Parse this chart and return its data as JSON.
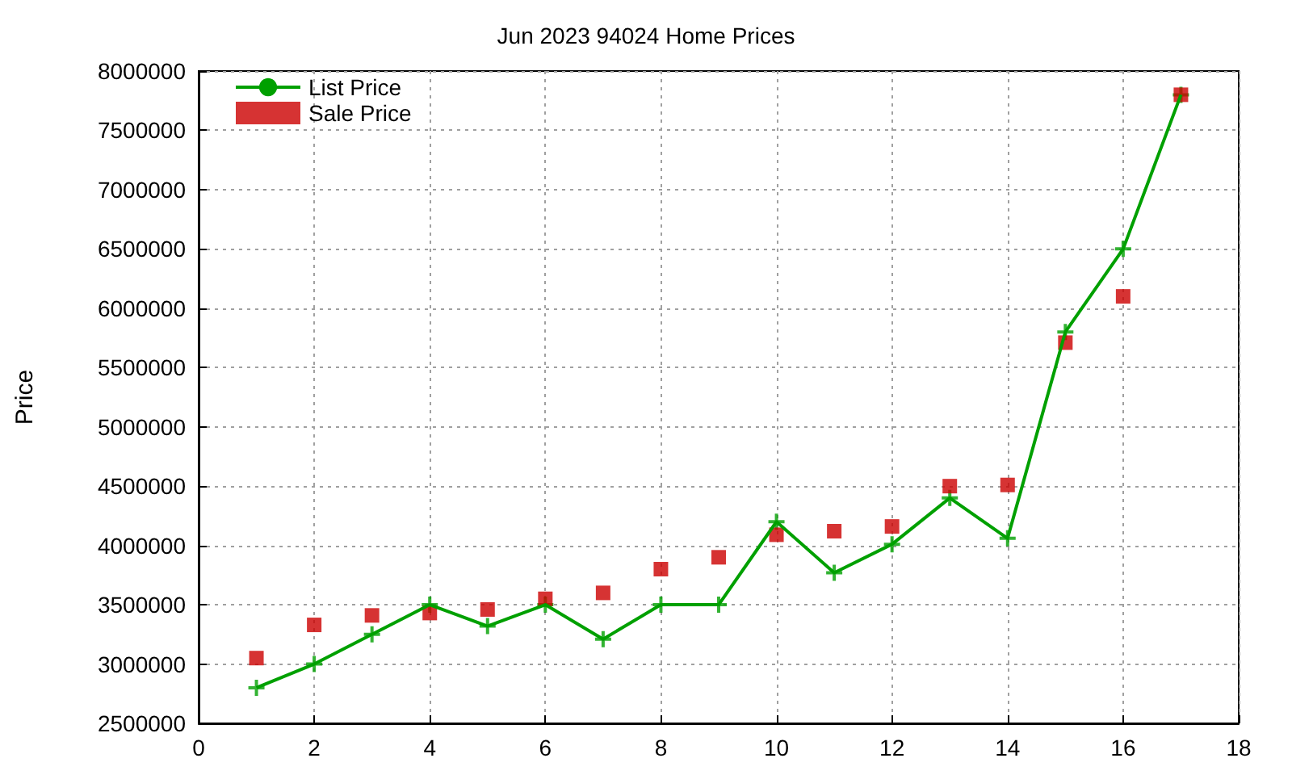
{
  "chart_data": {
    "type": "line",
    "title": "Jun 2023 94024 Home Prices",
    "ylabel": "Price",
    "x": [
      1,
      2,
      3,
      4,
      5,
      6,
      7,
      8,
      9,
      10,
      11,
      12,
      13,
      14,
      15,
      16,
      17
    ],
    "series": [
      {
        "name": "List Price",
        "color": "#00a000",
        "marker": "cross",
        "values": [
          2800000,
          3000000,
          3250000,
          3500000,
          3320000,
          3500000,
          3210000,
          3500000,
          3500000,
          4200000,
          3770000,
          4010000,
          4400000,
          4060000,
          5800000,
          6500000,
          7800000
        ]
      },
      {
        "name": "Sale Price",
        "type": "scatter",
        "color": "#cc0000",
        "marker": "square",
        "values": [
          3050000,
          3330000,
          3410000,
          3430000,
          3460000,
          3550000,
          3600000,
          3800000,
          3900000,
          4090000,
          4120000,
          4160000,
          4500000,
          4510000,
          5710000,
          6100000,
          7800000
        ]
      }
    ],
    "xlim": [
      0,
      18
    ],
    "xticks": [
      0,
      2,
      4,
      6,
      8,
      10,
      12,
      14,
      16,
      18
    ],
    "ylim": [
      2500000,
      8000000
    ],
    "yticks": [
      2500000,
      3000000,
      3500000,
      4000000,
      4500000,
      5000000,
      5500000,
      6000000,
      6500000,
      7000000,
      7500000,
      8000000
    ],
    "grid": true,
    "legend": "top left"
  }
}
